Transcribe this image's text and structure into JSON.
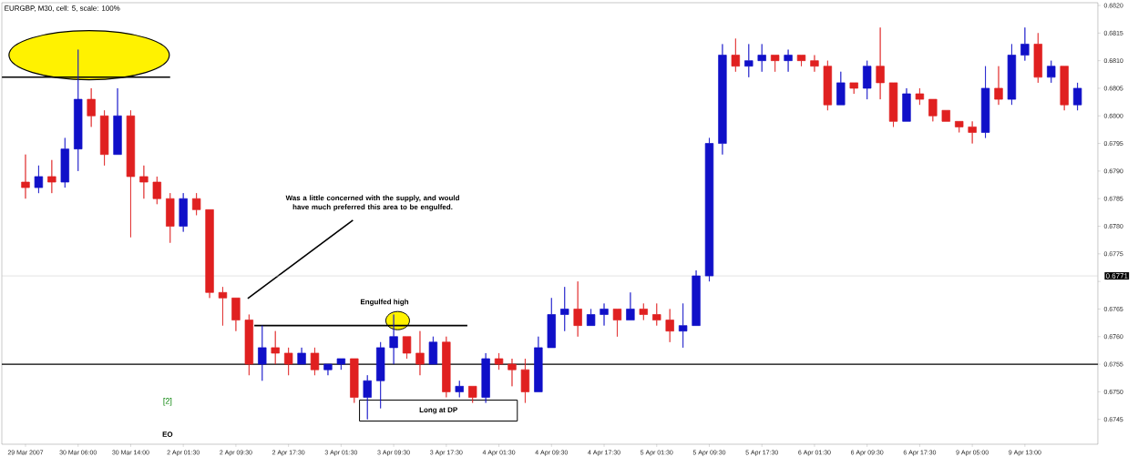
{
  "chart_data": {
    "type": "candlestick",
    "title": "EURGBP, M30, cell: 5, scale: 100%",
    "categories": [
      "29 Mar 2007",
      null,
      null,
      null,
      "30 Mar 06:00",
      null,
      null,
      null,
      "30 Mar 14:00",
      null,
      null,
      null,
      "2 Apr 01:30",
      null,
      null,
      null,
      "2 Apr 09:30",
      null,
      null,
      null,
      "2 Apr 17:30",
      null,
      null,
      null,
      "3 Apr 01:30",
      null,
      null,
      null,
      "3 Apr 09:30",
      null,
      null,
      null,
      "3 Apr 17:30",
      null,
      null,
      null,
      "4 Apr 01:30",
      null,
      null,
      null,
      "4 Apr 09:30",
      null,
      null,
      null,
      "4 Apr 17:30",
      null,
      null,
      null,
      "5 Apr 01:30",
      null,
      null,
      null,
      "5 Apr 09:30",
      null,
      null,
      null,
      "5 Apr 17:30",
      null,
      null,
      null,
      "6 Apr 01:30",
      null,
      null,
      null,
      "6 Apr 09:30",
      null,
      null,
      null,
      "6 Apr 17:30",
      null,
      null,
      null,
      "9 Apr 05:00",
      null,
      null,
      null,
      "9 Apr 13:00",
      null,
      null,
      null,
      null
    ],
    "ohlc": [
      [
        0.6788,
        0.6793,
        0.6785,
        0.6787
      ],
      [
        0.6787,
        0.6791,
        0.6786,
        0.6789
      ],
      [
        0.6789,
        0.6792,
        0.6786,
        0.6788
      ],
      [
        0.6788,
        0.6796,
        0.6787,
        0.6794
      ],
      [
        0.6794,
        0.6812,
        0.679,
        0.6803
      ],
      [
        0.6803,
        0.6805,
        0.6798,
        0.68
      ],
      [
        0.68,
        0.6801,
        0.6791,
        0.6793
      ],
      [
        0.6793,
        0.6805,
        0.6793,
        0.68
      ],
      [
        0.68,
        0.6801,
        0.6778,
        0.6789
      ],
      [
        0.6789,
        0.6791,
        0.6785,
        0.6788
      ],
      [
        0.6788,
        0.6789,
        0.6784,
        0.6785
      ],
      [
        0.6785,
        0.6786,
        0.6777,
        0.678
      ],
      [
        0.678,
        0.6786,
        0.6779,
        0.6785
      ],
      [
        0.6785,
        0.6786,
        0.6782,
        0.6783
      ],
      [
        0.6783,
        0.6783,
        0.6767,
        0.6768
      ],
      [
        0.6768,
        0.6769,
        0.6762,
        0.6767
      ],
      [
        0.6767,
        0.6767,
        0.6761,
        0.6763
      ],
      [
        0.6763,
        0.6764,
        0.6753,
        0.6755
      ],
      [
        0.6755,
        0.6762,
        0.6752,
        0.6758
      ],
      [
        0.6758,
        0.6761,
        0.6755,
        0.6757
      ],
      [
        0.6757,
        0.6758,
        0.6753,
        0.6755
      ],
      [
        0.6755,
        0.6758,
        0.6755,
        0.6757
      ],
      [
        0.6757,
        0.6758,
        0.6753,
        0.6754
      ],
      [
        0.6754,
        0.6755,
        0.6753,
        0.6755
      ],
      [
        0.6755,
        0.6756,
        0.6754,
        0.6756
      ],
      [
        0.6756,
        0.6756,
        0.6748,
        0.6749
      ],
      [
        0.6749,
        0.6753,
        0.6745,
        0.6752
      ],
      [
        0.6752,
        0.6759,
        0.6747,
        0.6758
      ],
      [
        0.6758,
        0.6764,
        0.6755,
        0.676
      ],
      [
        0.676,
        0.676,
        0.6756,
        0.6757
      ],
      [
        0.6757,
        0.6761,
        0.6753,
        0.6755
      ],
      [
        0.6755,
        0.676,
        0.6755,
        0.6759
      ],
      [
        0.6759,
        0.676,
        0.6749,
        0.675
      ],
      [
        0.675,
        0.6752,
        0.6749,
        0.6751
      ],
      [
        0.6751,
        0.6751,
        0.6748,
        0.6749
      ],
      [
        0.6749,
        0.6757,
        0.6748,
        0.6756
      ],
      [
        0.6756,
        0.6757,
        0.6754,
        0.6755
      ],
      [
        0.6755,
        0.6756,
        0.6751,
        0.6754
      ],
      [
        0.6754,
        0.6756,
        0.6748,
        0.675
      ],
      [
        0.675,
        0.676,
        0.675,
        0.6758
      ],
      [
        0.6758,
        0.6767,
        0.6758,
        0.6764
      ],
      [
        0.6764,
        0.6769,
        0.6761,
        0.6765
      ],
      [
        0.6765,
        0.677,
        0.676,
        0.6762
      ],
      [
        0.6762,
        0.6765,
        0.6762,
        0.6764
      ],
      [
        0.6764,
        0.6766,
        0.6762,
        0.6765
      ],
      [
        0.6765,
        0.6765,
        0.676,
        0.6763
      ],
      [
        0.6763,
        0.6768,
        0.6763,
        0.6765
      ],
      [
        0.6765,
        0.6766,
        0.6763,
        0.6764
      ],
      [
        0.6764,
        0.6766,
        0.6762,
        0.6763
      ],
      [
        0.6763,
        0.6765,
        0.6759,
        0.6761
      ],
      [
        0.6761,
        0.6766,
        0.6758,
        0.6762
      ],
      [
        0.6762,
        0.6772,
        0.6762,
        0.6771
      ],
      [
        0.6771,
        0.6796,
        0.677,
        0.6795
      ],
      [
        0.6795,
        0.6813,
        0.6793,
        0.6811
      ],
      [
        0.6811,
        0.6814,
        0.6808,
        0.6809
      ],
      [
        0.6809,
        0.6813,
        0.6807,
        0.681
      ],
      [
        0.681,
        0.6813,
        0.6808,
        0.6811
      ],
      [
        0.6811,
        0.6811,
        0.6808,
        0.681
      ],
      [
        0.681,
        0.6812,
        0.6808,
        0.6811
      ],
      [
        0.6811,
        0.6811,
        0.6809,
        0.681
      ],
      [
        0.681,
        0.6811,
        0.6808,
        0.6809
      ],
      [
        0.6809,
        0.681,
        0.6801,
        0.6802
      ],
      [
        0.6802,
        0.6808,
        0.6802,
        0.6806
      ],
      [
        0.6806,
        0.6806,
        0.6804,
        0.6805
      ],
      [
        0.6805,
        0.681,
        0.6803,
        0.6809
      ],
      [
        0.6809,
        0.6816,
        0.6803,
        0.6806
      ],
      [
        0.6806,
        0.6806,
        0.6798,
        0.6799
      ],
      [
        0.6799,
        0.6805,
        0.6799,
        0.6804
      ],
      [
        0.6804,
        0.6805,
        0.6802,
        0.6803
      ],
      [
        0.6803,
        0.6803,
        0.6799,
        0.68
      ],
      [
        0.6801,
        0.6801,
        0.6799,
        0.6799
      ],
      [
        0.6799,
        0.6799,
        0.6797,
        0.6798
      ],
      [
        0.6798,
        0.6799,
        0.6795,
        0.6797
      ],
      [
        0.6797,
        0.6809,
        0.6796,
        0.6805
      ],
      [
        0.6805,
        0.6809,
        0.6802,
        0.6803
      ],
      [
        0.6803,
        0.6813,
        0.6802,
        0.6811
      ],
      [
        0.6811,
        0.6816,
        0.681,
        0.6813
      ],
      [
        0.6813,
        0.6815,
        0.6806,
        0.6807
      ],
      [
        0.6807,
        0.681,
        0.6806,
        0.6809
      ],
      [
        0.6809,
        0.6809,
        0.6801,
        0.6802
      ],
      [
        0.6802,
        0.6806,
        0.6801,
        0.6805
      ]
    ],
    "colors": [
      "#e02020",
      "#1010c8",
      "#e02020",
      "#1010c8",
      "#1010c8",
      "#e02020",
      "#e02020",
      "#1010c8",
      "#e02020",
      "#e02020",
      "#e02020",
      "#e02020",
      "#1010c8",
      "#e02020",
      "#e02020",
      "#e02020",
      "#e02020",
      "#e02020",
      "#1010c8",
      "#e02020",
      "#e02020",
      "#1010c8",
      "#e02020",
      "#1010c8",
      "#1010c8",
      "#e02020",
      "#1010c8",
      "#1010c8",
      "#1010c8",
      "#e02020",
      "#e02020",
      "#1010c8",
      "#e02020",
      "#1010c8",
      "#e02020",
      "#1010c8",
      "#e02020",
      "#e02020",
      "#e02020",
      "#1010c8",
      "#1010c8",
      "#1010c8",
      "#e02020",
      "#1010c8",
      "#1010c8",
      "#e02020",
      "#1010c8",
      "#e02020",
      "#e02020",
      "#e02020",
      "#1010c8",
      "#1010c8",
      "#1010c8",
      "#1010c8",
      "#e02020",
      "#1010c8",
      "#1010c8",
      "#e02020",
      "#1010c8",
      "#e02020",
      "#e02020",
      "#e02020",
      "#1010c8",
      "#e02020",
      "#1010c8",
      "#e02020",
      "#e02020",
      "#1010c8",
      "#e02020",
      "#e02020",
      "#e02020",
      "#e02020",
      "#e02020",
      "#1010c8",
      "#e02020",
      "#1010c8",
      "#1010c8",
      "#e02020",
      "#1010c8",
      "#e02020",
      "#1010c8"
    ],
    "ylim": [
      0.67405,
      0.68205
    ],
    "yticks": [
      {
        "value": 0.6745,
        "label": "0.6745"
      },
      {
        "value": 0.675,
        "label": "0.6750"
      },
      {
        "value": 0.6755,
        "label": "0.6755"
      },
      {
        "value": 0.676,
        "label": "0.6760"
      },
      {
        "value": 0.6765,
        "label": "0.6765"
      },
      {
        "value": 0.677,
        "label": null
      },
      {
        "value": 0.6775,
        "label": "0.6775"
      },
      {
        "value": 0.678,
        "label": "0.6780"
      },
      {
        "value": 0.6785,
        "label": "0.6785"
      },
      {
        "value": 0.679,
        "label": "0.6790"
      },
      {
        "value": 0.6795,
        "label": "0.6795"
      },
      {
        "value": 0.68,
        "label": "0.6800"
      },
      {
        "value": 0.6805,
        "label": "0.6805"
      },
      {
        "value": 0.681,
        "label": "0.6810"
      },
      {
        "value": 0.6815,
        "label": "0.6815"
      },
      {
        "value": 0.682,
        "label": "0.6820"
      }
    ],
    "ref_lines": [
      {
        "axis": "y",
        "value": 0.6755,
        "color": "#000000"
      },
      {
        "axis": "y",
        "value": 0.6771,
        "label": "0.6771",
        "color": "#c8c8c8"
      }
    ],
    "annotations": [
      "Was a little concerned with the supply, and would have much preferred this area to be engulfed.",
      "Engulfed high",
      "Long at DP",
      "[2]",
      "EO"
    ]
  }
}
